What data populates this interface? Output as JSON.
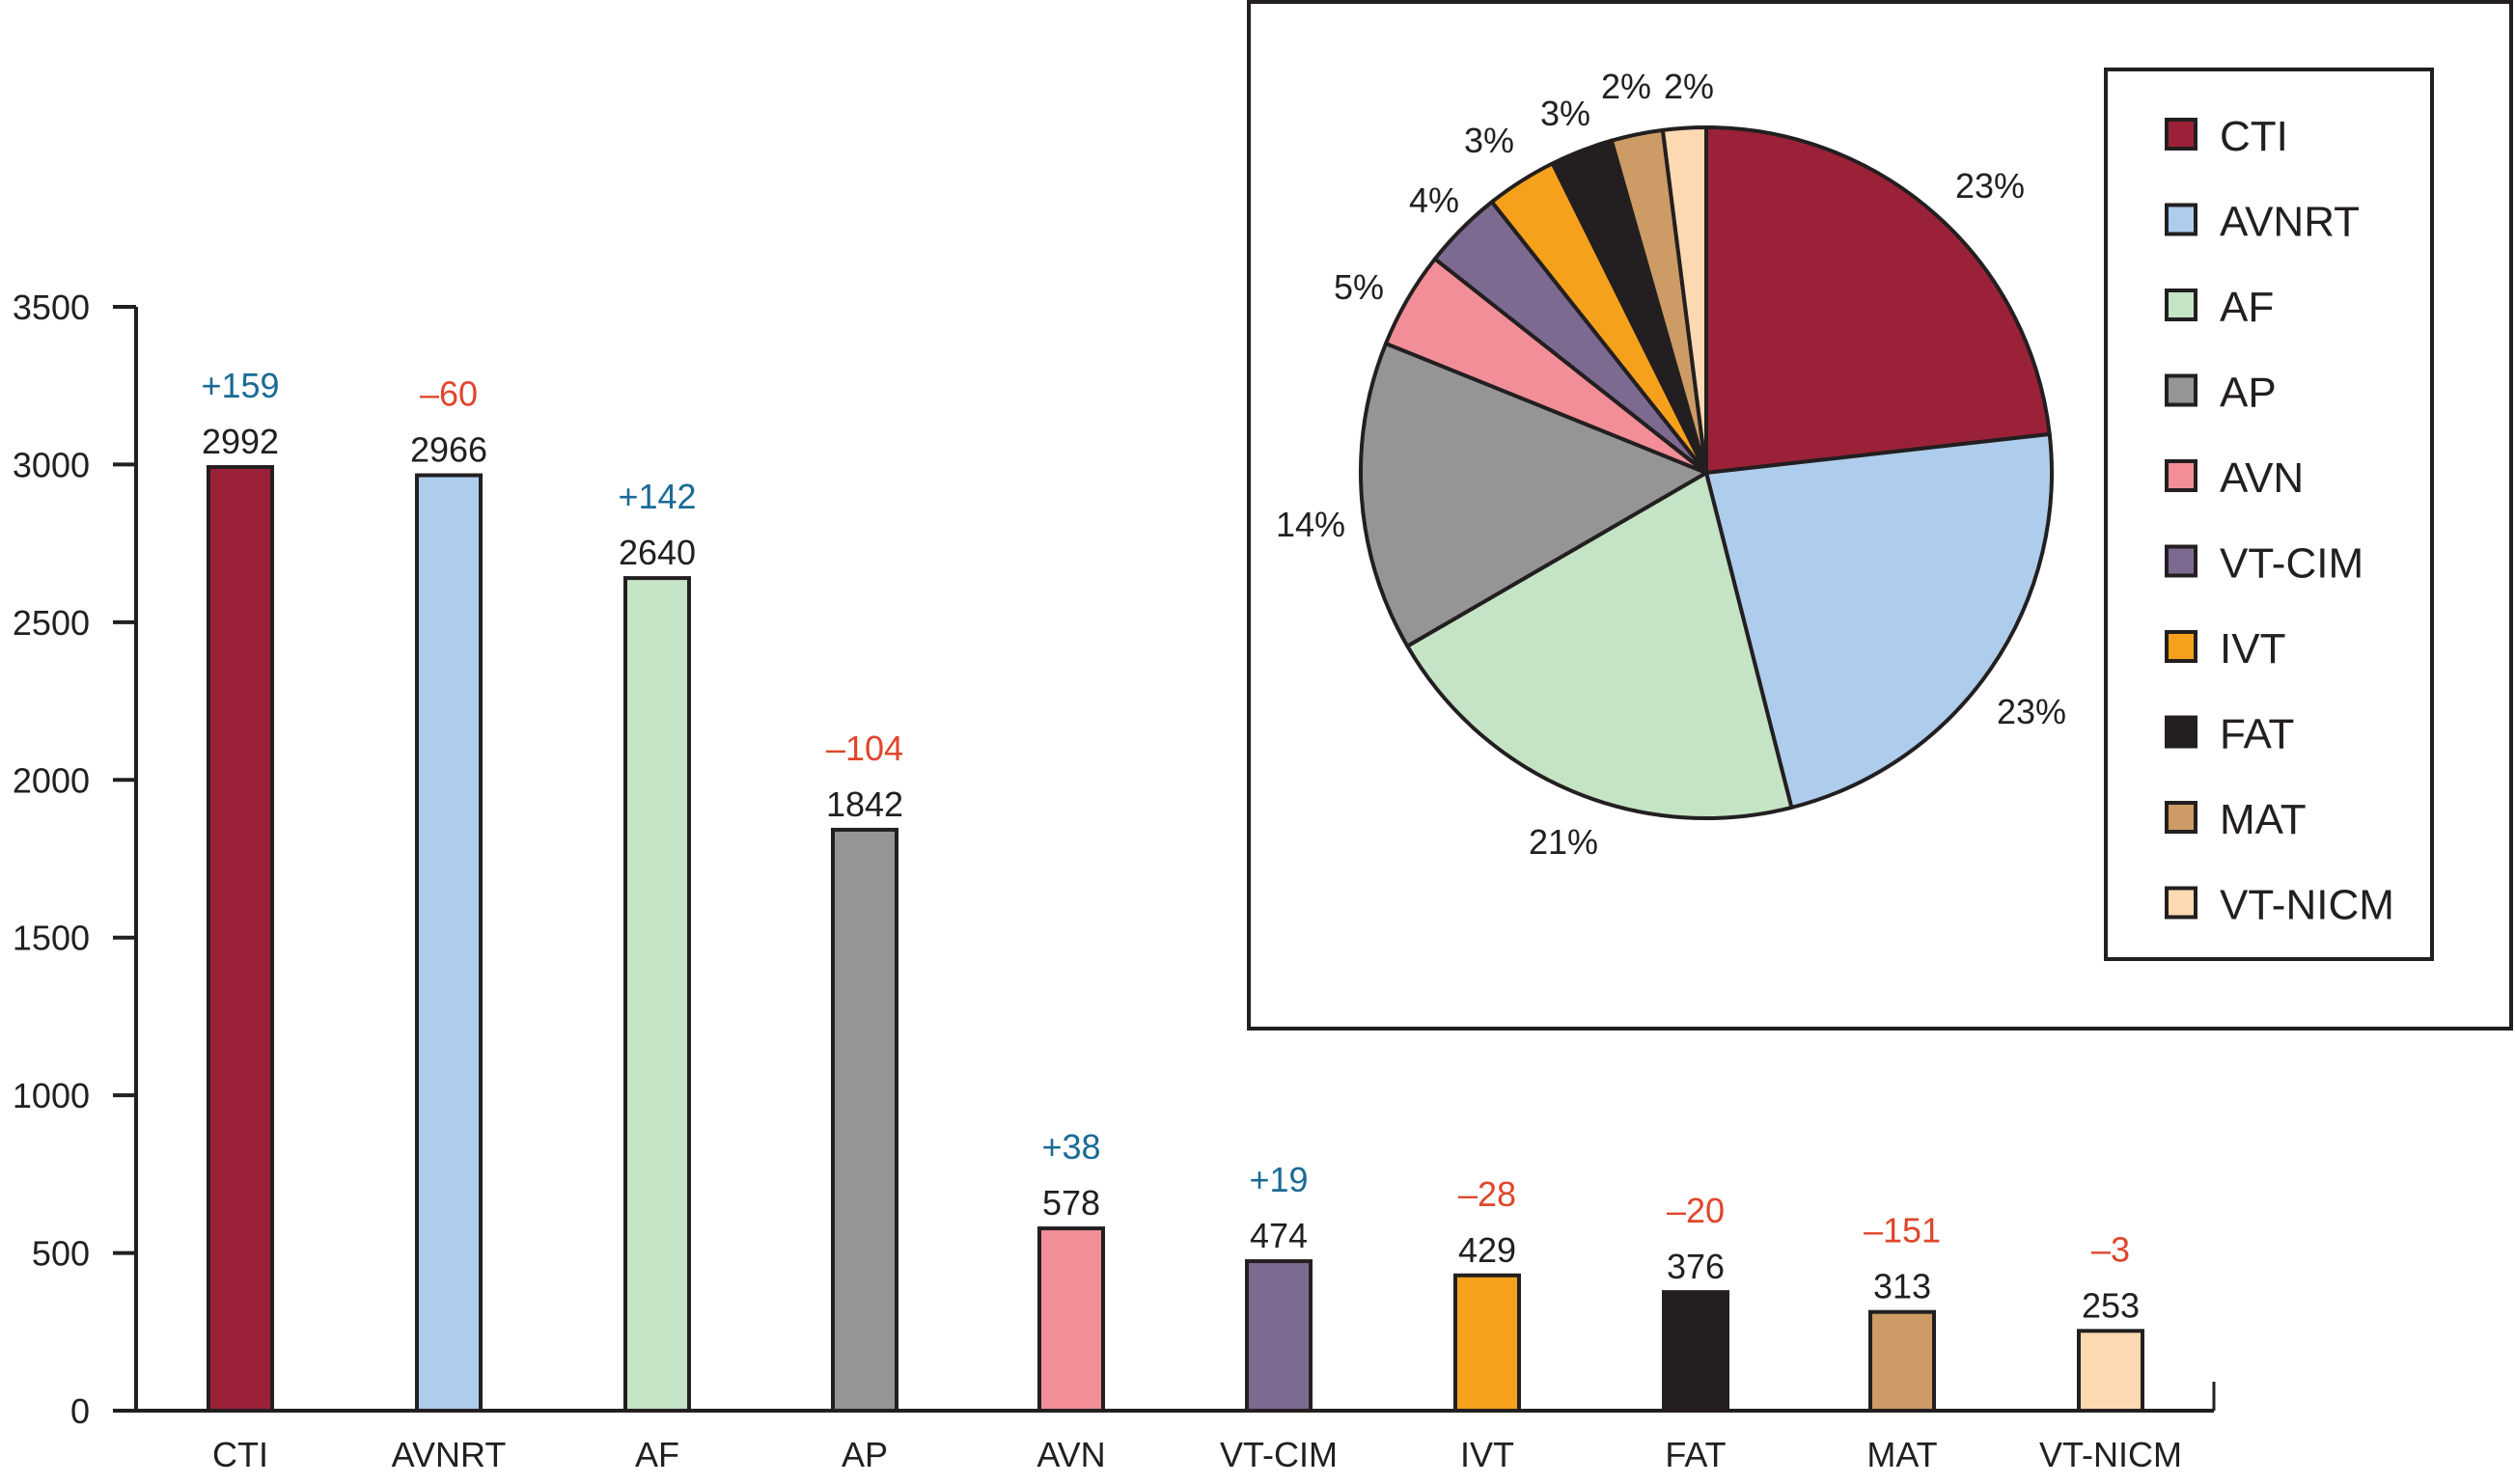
{
  "chart_data": [
    {
      "type": "bar",
      "title": "",
      "xlabel": "",
      "ylabel": "",
      "ylim": [
        0,
        3500
      ],
      "yticks": [
        0,
        500,
        1000,
        1500,
        2000,
        2500,
        3000,
        3500
      ],
      "grid": false,
      "categories": [
        "CTI",
        "AVNRT",
        "AF",
        "AP",
        "AVN",
        "VT-CIM",
        "IVT",
        "FAT",
        "MAT",
        "VT-NICM"
      ],
      "values": [
        2992,
        2966,
        2640,
        1842,
        578,
        474,
        429,
        376,
        313,
        253
      ],
      "changes": [
        "+159",
        "–60",
        "+142",
        "–104",
        "+38",
        "+19",
        "–28",
        "–20",
        "–151",
        "–3"
      ],
      "change_signs": [
        "pos",
        "neg",
        "pos",
        "neg",
        "pos",
        "pos",
        "neg",
        "neg",
        "neg",
        "neg"
      ],
      "colors": [
        "#9b2138",
        "#aecdec",
        "#c5e3c5",
        "#959595",
        "#f28e98",
        "#7d6a91",
        "#f6a11c",
        "#231f20",
        "#cd9b66",
        "#fdd9b2"
      ]
    },
    {
      "type": "pie",
      "title": "",
      "legend_position": "right",
      "labels": [
        "CTI",
        "AVNRT",
        "AF",
        "AP",
        "AVN",
        "VT-CIM",
        "IVT",
        "FAT",
        "MAT",
        "VT-NICM"
      ],
      "values": [
        23,
        23,
        21,
        14,
        5,
        4,
        3,
        3,
        2,
        2
      ],
      "value_labels": [
        "23%",
        "23%",
        "21%",
        "14%",
        "5%",
        "4%",
        "3%",
        "3%",
        "2%",
        "2%"
      ],
      "colors": [
        "#9b2138",
        "#aecdec",
        "#c5e3c5",
        "#959595",
        "#f28e98",
        "#7d6a91",
        "#f6a11c",
        "#231f20",
        "#cd9b66",
        "#fdd9b2"
      ]
    }
  ],
  "axis": {
    "ticks": [
      "0",
      "500",
      "1000",
      "1500",
      "2000",
      "2500",
      "3000",
      "3500"
    ]
  },
  "legend": {
    "items": [
      "CTI",
      "AVNRT",
      "AF",
      "AP",
      "AVN",
      "VT-CIM",
      "IVT",
      "FAT",
      "MAT",
      "VT-NICM"
    ]
  }
}
